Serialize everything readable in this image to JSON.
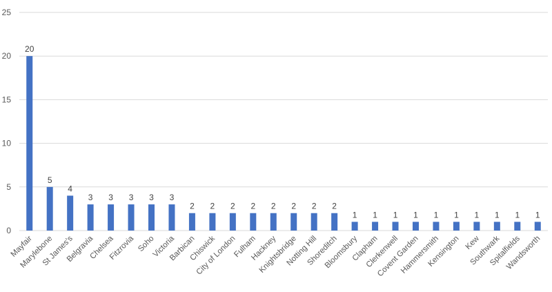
{
  "chart_data": {
    "type": "bar",
    "title": "",
    "xlabel": "",
    "ylabel": "",
    "ylim": [
      0,
      25
    ],
    "yticks": [
      0,
      5,
      10,
      15,
      20,
      25
    ],
    "grid": true,
    "bar_color": "#4472C4",
    "gridline_color": "#D9D9D9",
    "categories": [
      "Mayfair",
      "Marylebone",
      "St James's",
      "Belgravia",
      "Chelsea",
      "Fitzrovia",
      "Soho",
      "Victoria",
      "Barbican",
      "Chiswick",
      "City of London",
      "Fulham",
      "Hackney",
      "Knightsbridge",
      "Notting Hill",
      "Shoreditch",
      "Bloomsbury",
      "Clapham",
      "Clerkenwell",
      "Covent Garden",
      "Hammersmith",
      "Kensington",
      "Kew",
      "Southwark",
      "Spitalfields",
      "Wandsworth"
    ],
    "values": [
      20,
      5,
      4,
      3,
      3,
      3,
      3,
      3,
      2,
      2,
      2,
      2,
      2,
      2,
      2,
      2,
      1,
      1,
      1,
      1,
      1,
      1,
      1,
      1,
      1,
      1
    ],
    "data_labels": true
  }
}
